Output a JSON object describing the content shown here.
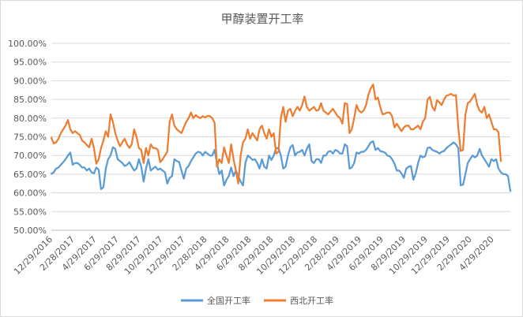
{
  "chart_data": {
    "type": "line",
    "title": "甲醇装置开工率",
    "xlabel": "",
    "ylabel": "",
    "ylim": [
      0.5,
      1.0
    ],
    "yticks": [
      "50.00%",
      "55.00%",
      "60.00%",
      "65.00%",
      "70.00%",
      "75.00%",
      "80.00%",
      "85.00%",
      "90.00%",
      "95.00%",
      "100.00%"
    ],
    "xticks": [
      "12/29/2016",
      "2/28/2017",
      "4/29/2017",
      "6/29/2017",
      "8/29/2017",
      "10/29/2017",
      "12/29/2017",
      "2/28/2018",
      "4/29/2018",
      "6/29/2018",
      "8/29/2018",
      "10/29/2018",
      "12/29/2018",
      "2/28/2019",
      "4/29/2019",
      "6/29/2019",
      "8/29/2019",
      "10/29/2019",
      "12/29/2019",
      "2/29/2020",
      "4/29/2020"
    ],
    "legend_position": "bottom",
    "grid": true,
    "series": [
      {
        "name": "全国开工率",
        "color": "#5b9bd5",
        "values": [
          0.651,
          0.655,
          0.665,
          0.668,
          0.675,
          0.682,
          0.69,
          0.7,
          0.708,
          0.675,
          0.68,
          0.68,
          0.675,
          0.668,
          0.668,
          0.66,
          0.665,
          0.655,
          0.652,
          0.668,
          0.662,
          0.61,
          0.615,
          0.665,
          0.69,
          0.7,
          0.722,
          0.718,
          0.69,
          0.685,
          0.68,
          0.672,
          0.675,
          0.682,
          0.67,
          0.66,
          0.665,
          0.69,
          0.67,
          0.63,
          0.665,
          0.69,
          0.66,
          0.665,
          0.67,
          0.662,
          0.665,
          0.66,
          0.655,
          0.625,
          0.64,
          0.645,
          0.69,
          0.685,
          0.683,
          0.66,
          0.638,
          0.665,
          0.672,
          0.685,
          0.695,
          0.705,
          0.71,
          0.708,
          0.7,
          0.71,
          0.705,
          0.7,
          0.7,
          0.715,
          0.68,
          0.65,
          0.66,
          0.62,
          0.635,
          0.645,
          0.668,
          0.645,
          0.66,
          0.645,
          0.63,
          0.62,
          0.68,
          0.7,
          0.695,
          0.688,
          0.69,
          0.68,
          0.665,
          0.69,
          0.67,
          0.665,
          0.7,
          0.688,
          0.7,
          0.72,
          0.72,
          0.7,
          0.665,
          0.67,
          0.7,
          0.722,
          0.728,
          0.7,
          0.708,
          0.71,
          0.715,
          0.7,
          0.718,
          0.73,
          0.685,
          0.68,
          0.69,
          0.69,
          0.68,
          0.7,
          0.7,
          0.71,
          0.712,
          0.705,
          0.715,
          0.712,
          0.705,
          0.705,
          0.73,
          0.725,
          0.665,
          0.668,
          0.68,
          0.708,
          0.705,
          0.71,
          0.71,
          0.715,
          0.725,
          0.735,
          0.738,
          0.715,
          0.72,
          0.712,
          0.71,
          0.708,
          0.7,
          0.698,
          0.69,
          0.678,
          0.66,
          0.66,
          0.652,
          0.64,
          0.665,
          0.67,
          0.672,
          0.635,
          0.652,
          0.68,
          0.7,
          0.695,
          0.698,
          0.72,
          0.722,
          0.715,
          0.712,
          0.71,
          0.705,
          0.71,
          0.712,
          0.72,
          0.725,
          0.73,
          0.735,
          0.73,
          0.72,
          0.62,
          0.622,
          0.65,
          0.68,
          0.69,
          0.7,
          0.695,
          0.7,
          0.718,
          0.7,
          0.69,
          0.68,
          0.67,
          0.69,
          0.685,
          0.69,
          0.665,
          0.655,
          0.65,
          0.65,
          0.645,
          0.605
        ]
      },
      {
        "name": "西北开工率",
        "color": "#ed7d31",
        "values": [
          0.748,
          0.732,
          0.735,
          0.745,
          0.76,
          0.77,
          0.78,
          0.795,
          0.77,
          0.76,
          0.765,
          0.76,
          0.755,
          0.74,
          0.735,
          0.728,
          0.722,
          0.745,
          0.72,
          0.678,
          0.69,
          0.72,
          0.74,
          0.765,
          0.75,
          0.81,
          0.79,
          0.76,
          0.74,
          0.725,
          0.735,
          0.745,
          0.73,
          0.72,
          0.73,
          0.77,
          0.75,
          0.72,
          0.715,
          0.68,
          0.72,
          0.7,
          0.73,
          0.72,
          0.72,
          0.715,
          0.682,
          0.69,
          0.7,
          0.71,
          0.79,
          0.81,
          0.78,
          0.77,
          0.765,
          0.76,
          0.775,
          0.79,
          0.8,
          0.815,
          0.8,
          0.808,
          0.803,
          0.8,
          0.805,
          0.802,
          0.806,
          0.805,
          0.8,
          0.788,
          0.67,
          0.69,
          0.68,
          0.722,
          0.7,
          0.68,
          0.73,
          0.69,
          0.66,
          0.625,
          0.7,
          0.735,
          0.745,
          0.77,
          0.745,
          0.76,
          0.75,
          0.74,
          0.77,
          0.78,
          0.76,
          0.745,
          0.77,
          0.75,
          0.76,
          0.705,
          0.71,
          0.8,
          0.83,
          0.79,
          0.82,
          0.825,
          0.805,
          0.82,
          0.83,
          0.82,
          0.835,
          0.858,
          0.83,
          0.82,
          0.825,
          0.83,
          0.82,
          0.822,
          0.84,
          0.82,
          0.815,
          0.81,
          0.818,
          0.825,
          0.815,
          0.805,
          0.8,
          0.785,
          0.84,
          0.838,
          0.76,
          0.77,
          0.8,
          0.835,
          0.82,
          0.815,
          0.82,
          0.835,
          0.862,
          0.88,
          0.89,
          0.85,
          0.855,
          0.83,
          0.81,
          0.812,
          0.815,
          0.815,
          0.805,
          0.775,
          0.785,
          0.775,
          0.765,
          0.775,
          0.78,
          0.78,
          0.77,
          0.77,
          0.775,
          0.78,
          0.77,
          0.79,
          0.8,
          0.85,
          0.857,
          0.83,
          0.82,
          0.848,
          0.842,
          0.835,
          0.85,
          0.86,
          0.862,
          0.865,
          0.86,
          0.862,
          0.775,
          0.712,
          0.715,
          0.81,
          0.84,
          0.845,
          0.855,
          0.865,
          0.835,
          0.82,
          0.815,
          0.83,
          0.8,
          0.81,
          0.79,
          0.77,
          0.77,
          0.762,
          0.685
        ]
      }
    ]
  }
}
